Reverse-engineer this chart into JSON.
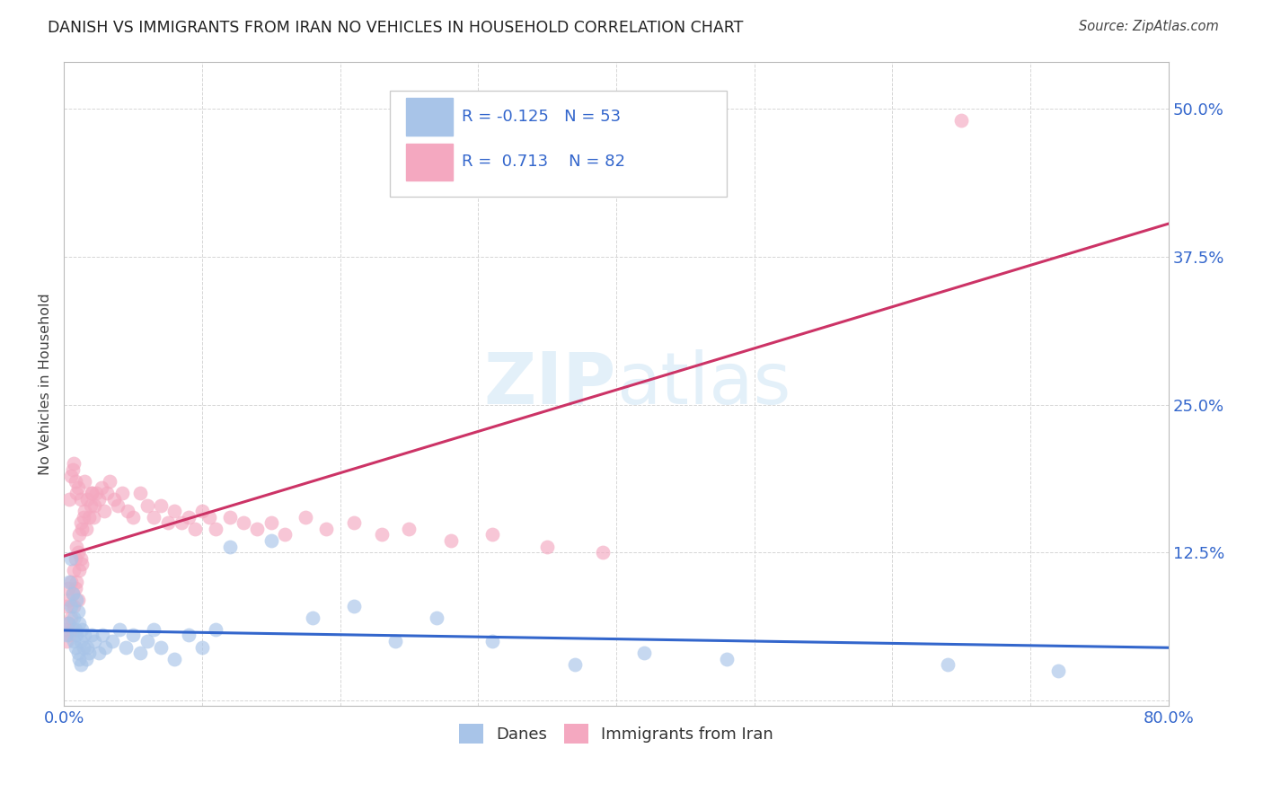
{
  "title": "DANISH VS IMMIGRANTS FROM IRAN NO VEHICLES IN HOUSEHOLD CORRELATION CHART",
  "source": "Source: ZipAtlas.com",
  "ylabel": "No Vehicles in Household",
  "xlim": [
    0.0,
    0.8
  ],
  "ylim": [
    -0.005,
    0.54
  ],
  "xticks": [
    0.0,
    0.1,
    0.2,
    0.3,
    0.4,
    0.5,
    0.6,
    0.7,
    0.8
  ],
  "yticks": [
    0.0,
    0.125,
    0.25,
    0.375,
    0.5
  ],
  "danes_R": -0.125,
  "danes_N": 53,
  "iran_R": 0.713,
  "iran_N": 82,
  "danes_color": "#a8c4e8",
  "iran_color": "#f4a8c0",
  "danes_line_color": "#3366cc",
  "iran_line_color": "#cc3366",
  "background_color": "#ffffff",
  "grid_color": "#cccccc",
  "watermark_zip": "ZIP",
  "watermark_atlas": "atlas",
  "danes_x": [
    0.002,
    0.003,
    0.004,
    0.005,
    0.005,
    0.006,
    0.007,
    0.007,
    0.008,
    0.008,
    0.009,
    0.009,
    0.01,
    0.01,
    0.011,
    0.011,
    0.012,
    0.012,
    0.013,
    0.014,
    0.015,
    0.016,
    0.017,
    0.018,
    0.02,
    0.022,
    0.025,
    0.028,
    0.03,
    0.035,
    0.04,
    0.045,
    0.05,
    0.055,
    0.06,
    0.065,
    0.07,
    0.08,
    0.09,
    0.1,
    0.11,
    0.12,
    0.15,
    0.18,
    0.21,
    0.24,
    0.27,
    0.31,
    0.37,
    0.42,
    0.48,
    0.64,
    0.72
  ],
  "danes_y": [
    0.055,
    0.065,
    0.1,
    0.12,
    0.08,
    0.09,
    0.07,
    0.05,
    0.06,
    0.045,
    0.085,
    0.055,
    0.075,
    0.04,
    0.065,
    0.035,
    0.05,
    0.03,
    0.06,
    0.045,
    0.055,
    0.035,
    0.045,
    0.04,
    0.055,
    0.05,
    0.04,
    0.055,
    0.045,
    0.05,
    0.06,
    0.045,
    0.055,
    0.04,
    0.05,
    0.06,
    0.045,
    0.035,
    0.055,
    0.045,
    0.06,
    0.13,
    0.135,
    0.07,
    0.08,
    0.05,
    0.07,
    0.05,
    0.03,
    0.04,
    0.035,
    0.03,
    0.025
  ],
  "iran_x": [
    0.001,
    0.002,
    0.002,
    0.003,
    0.003,
    0.004,
    0.004,
    0.005,
    0.005,
    0.006,
    0.006,
    0.007,
    0.007,
    0.008,
    0.008,
    0.009,
    0.009,
    0.01,
    0.01,
    0.011,
    0.011,
    0.012,
    0.012,
    0.013,
    0.013,
    0.014,
    0.015,
    0.016,
    0.017,
    0.018,
    0.019,
    0.02,
    0.021,
    0.022,
    0.023,
    0.025,
    0.027,
    0.029,
    0.031,
    0.033,
    0.036,
    0.039,
    0.042,
    0.046,
    0.05,
    0.055,
    0.06,
    0.065,
    0.07,
    0.075,
    0.08,
    0.085,
    0.09,
    0.095,
    0.1,
    0.105,
    0.11,
    0.12,
    0.13,
    0.14,
    0.15,
    0.16,
    0.175,
    0.19,
    0.21,
    0.23,
    0.25,
    0.28,
    0.31,
    0.35,
    0.39,
    0.004,
    0.005,
    0.006,
    0.007,
    0.008,
    0.009,
    0.01,
    0.012,
    0.015,
    0.02,
    0.65
  ],
  "iran_y": [
    0.06,
    0.08,
    0.05,
    0.095,
    0.065,
    0.085,
    0.055,
    0.1,
    0.07,
    0.09,
    0.06,
    0.11,
    0.08,
    0.12,
    0.095,
    0.13,
    0.1,
    0.125,
    0.085,
    0.11,
    0.14,
    0.15,
    0.12,
    0.145,
    0.115,
    0.155,
    0.16,
    0.145,
    0.17,
    0.155,
    0.165,
    0.175,
    0.155,
    0.165,
    0.175,
    0.17,
    0.18,
    0.16,
    0.175,
    0.185,
    0.17,
    0.165,
    0.175,
    0.16,
    0.155,
    0.175,
    0.165,
    0.155,
    0.165,
    0.15,
    0.16,
    0.15,
    0.155,
    0.145,
    0.16,
    0.155,
    0.145,
    0.155,
    0.15,
    0.145,
    0.15,
    0.14,
    0.155,
    0.145,
    0.15,
    0.14,
    0.145,
    0.135,
    0.14,
    0.13,
    0.125,
    0.17,
    0.19,
    0.195,
    0.2,
    0.185,
    0.175,
    0.18,
    0.17,
    0.185,
    0.175,
    0.49
  ]
}
